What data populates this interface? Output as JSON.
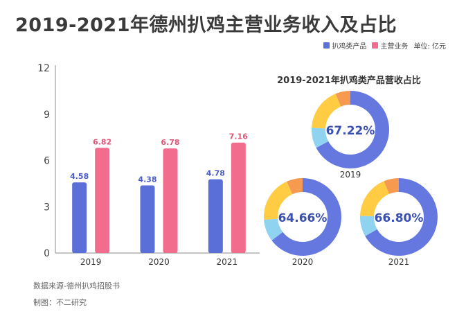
{
  "title": "2019-2021年德州扒鸡主营业务收入及占比",
  "legend": {
    "item1": "扒鸡类产品",
    "item2": "主营业务",
    "unit": "单位: 亿元"
  },
  "colors": {
    "chicken": "#5b6fd9",
    "main": "#f26d8d",
    "donut_main": "#6478e0",
    "donut_yellow": "#ffcc44",
    "donut_cyan": "#8fd3f0",
    "donut_orange": "#f59a4e"
  },
  "chart_data": [
    {
      "type": "bar",
      "categories": [
        "2019",
        "2020",
        "2021"
      ],
      "series": [
        {
          "name": "扒鸡类产品",
          "values": [
            4.58,
            4.38,
            4.78
          ]
        },
        {
          "name": "主营业务",
          "values": [
            6.82,
            6.78,
            7.16
          ]
        }
      ],
      "ylim": [
        0,
        12
      ],
      "yticks": [
        "0",
        "3",
        "6",
        "9",
        "12"
      ],
      "grid": false,
      "legend_position": "top-right"
    },
    {
      "type": "pie",
      "title": "2019-2021年扒鸡类产品营收占比",
      "items": [
        {
          "label": "2019",
          "percent_label": "67.22%",
          "value": 67.22
        },
        {
          "label": "2020",
          "percent_label": "64.66%",
          "value": 64.66
        },
        {
          "label": "2021",
          "percent_label": "66.80%",
          "value": 66.8
        }
      ]
    }
  ],
  "footer": {
    "source": "数据来源-德州扒鸡招股书",
    "maker": "制图：不二研究"
  }
}
